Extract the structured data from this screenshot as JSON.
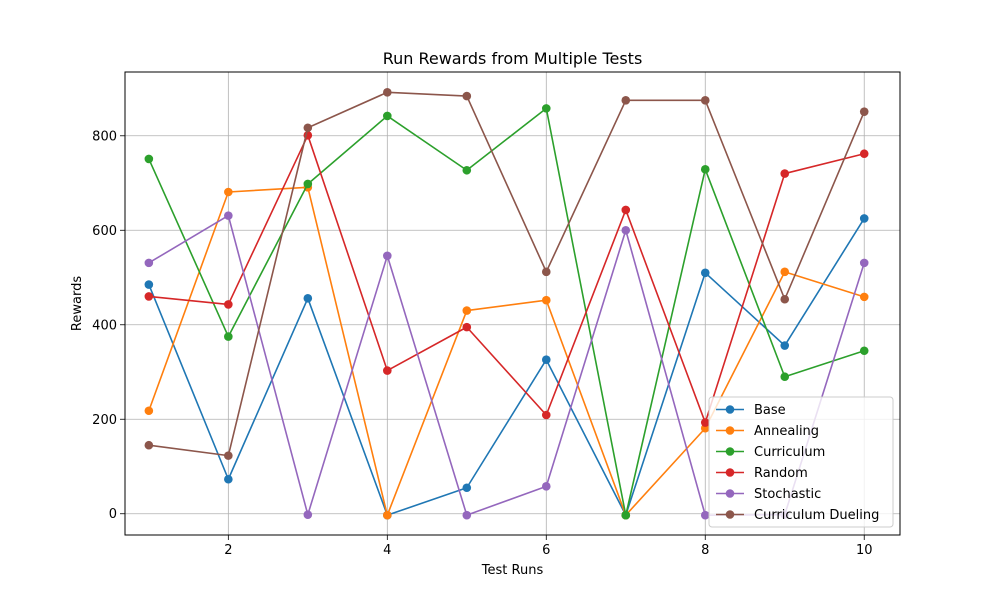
{
  "chart_data": {
    "type": "line",
    "title": "Run Rewards from Multiple Tests",
    "xlabel": "Test Runs",
    "ylabel": "Rewards",
    "x": [
      1,
      2,
      3,
      4,
      5,
      6,
      7,
      8,
      9,
      10
    ],
    "xlim": [
      0.7,
      10.45
    ],
    "ylim": [
      -45,
      935
    ],
    "xticks": [
      2,
      4,
      6,
      8,
      10
    ],
    "yticks": [
      0,
      200,
      400,
      600,
      800
    ],
    "grid": true,
    "legend_position": "lower-right",
    "marker": "circle",
    "series": [
      {
        "name": "Base",
        "color": "#1f77b4",
        "values": [
          485,
          73,
          456,
          -3,
          55,
          326,
          -3,
          510,
          356,
          625
        ]
      },
      {
        "name": "Annealing",
        "color": "#ff7f0e",
        "values": [
          218,
          681,
          691,
          -3,
          430,
          452,
          -3,
          181,
          512,
          459
        ]
      },
      {
        "name": "Curriculum",
        "color": "#2ca02c",
        "values": [
          751,
          375,
          698,
          842,
          727,
          858,
          -3,
          729,
          290,
          345
        ]
      },
      {
        "name": "Random",
        "color": "#d62728",
        "values": [
          460,
          443,
          801,
          303,
          395,
          209,
          643,
          193,
          720,
          762
        ]
      },
      {
        "name": "Stochastic",
        "color": "#9467bd",
        "values": [
          531,
          631,
          -2,
          546,
          -3,
          58,
          600,
          -3,
          -2,
          531
        ]
      },
      {
        "name": "Curriculum Dueling",
        "color": "#8c564b",
        "values": [
          145,
          123,
          817,
          892,
          884,
          512,
          875,
          875,
          454,
          851
        ]
      }
    ]
  }
}
